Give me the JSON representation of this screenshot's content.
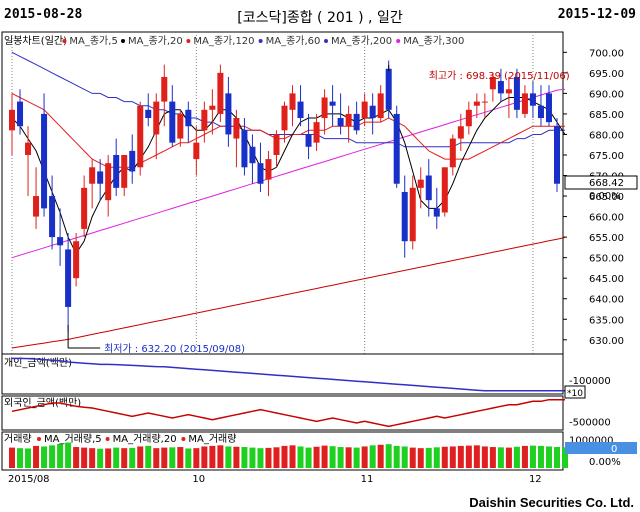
{
  "header": {
    "start_date": "2015-08-28",
    "end_date": "2015-12-09",
    "title": "[코스닥]종합 ( 201 ) , 일간"
  },
  "footer": {
    "brand": "Daishin Securities Co. Ltd."
  },
  "colors": {
    "up": "#e0201b",
    "down": "#1830c8",
    "ma5": "#000000",
    "ma20": "#e0201b",
    "ma60": "#3030c8",
    "ma120": "#c80000",
    "ma300": "#e020e0",
    "volume_up": "#e02020",
    "volume_down": "#20d020",
    "grid": "#808080",
    "accent_box": "#4a90e2"
  },
  "chart_data": [
    {
      "type": "candlestick",
      "title": "일봉차트(일간)",
      "legend": [
        "MA_종가,5",
        "MA_종가,20",
        "MA_종가,120",
        "MA_종가,60",
        "MA_종가,200",
        "MA_종가,300"
      ],
      "ylim": [
        628,
        703
      ],
      "yticks": [
        630,
        635,
        640,
        645,
        650,
        655,
        660,
        665,
        670,
        675,
        680,
        685,
        690,
        695,
        700
      ],
      "x_months": [
        {
          "index": 0,
          "label": "2015/08"
        },
        {
          "index": 23,
          "label": "10"
        },
        {
          "index": 44,
          "label": "11"
        },
        {
          "index": 65,
          "label": "12"
        }
      ],
      "annotations": {
        "high_label": "최고가 : 698.39 (2015/11/06)",
        "high_value": 698.39,
        "high_index": 47,
        "low_label": "최저가 : 632.20 (2015/09/08)",
        "low_value": 632.2,
        "low_index": 7
      },
      "last_value": "668.42",
      "last_value_num": 668.42,
      "last_change": "0.00%",
      "candles": [
        {
          "o": 681,
          "h": 690,
          "l": 675,
          "c": 686
        },
        {
          "o": 688,
          "h": 691,
          "l": 680,
          "c": 682
        },
        {
          "o": 675,
          "h": 682,
          "l": 665,
          "c": 678
        },
        {
          "o": 660,
          "h": 672,
          "l": 657,
          "c": 665
        },
        {
          "o": 685,
          "h": 690,
          "l": 660,
          "c": 662
        },
        {
          "o": 665,
          "h": 670,
          "l": 652,
          "c": 655
        },
        {
          "o": 655,
          "h": 662,
          "l": 648,
          "c": 653
        },
        {
          "o": 652,
          "h": 656,
          "l": 632,
          "c": 638
        },
        {
          "o": 645,
          "h": 656,
          "l": 643,
          "c": 654
        },
        {
          "o": 657,
          "h": 670,
          "l": 655,
          "c": 667
        },
        {
          "o": 668,
          "h": 674,
          "l": 662,
          "c": 672
        },
        {
          "o": 671,
          "h": 674,
          "l": 664,
          "c": 668
        },
        {
          "o": 664,
          "h": 675,
          "l": 660,
          "c": 673
        },
        {
          "o": 675,
          "h": 679,
          "l": 665,
          "c": 667
        },
        {
          "o": 667,
          "h": 675,
          "l": 665,
          "c": 675
        },
        {
          "o": 676,
          "h": 680,
          "l": 668,
          "c": 671
        },
        {
          "o": 672,
          "h": 688,
          "l": 670,
          "c": 687
        },
        {
          "o": 686,
          "h": 690,
          "l": 682,
          "c": 684
        },
        {
          "o": 680,
          "h": 690,
          "l": 674,
          "c": 688
        },
        {
          "o": 688,
          "h": 697,
          "l": 682,
          "c": 694
        },
        {
          "o": 688,
          "h": 692,
          "l": 677,
          "c": 678
        },
        {
          "o": 679,
          "h": 686,
          "l": 677,
          "c": 685
        },
        {
          "o": 686,
          "h": 688,
          "l": 678,
          "c": 682
        },
        {
          "o": 674,
          "h": 682,
          "l": 670,
          "c": 678
        },
        {
          "o": 681,
          "h": 688,
          "l": 678,
          "c": 686
        },
        {
          "o": 686,
          "h": 691,
          "l": 680,
          "c": 687
        },
        {
          "o": 685,
          "h": 697,
          "l": 683,
          "c": 695
        },
        {
          "o": 690,
          "h": 694,
          "l": 677,
          "c": 680
        },
        {
          "o": 679,
          "h": 686,
          "l": 672,
          "c": 684
        },
        {
          "o": 681,
          "h": 684,
          "l": 670,
          "c": 672
        },
        {
          "o": 677,
          "h": 680,
          "l": 668,
          "c": 673
        },
        {
          "o": 673,
          "h": 678,
          "l": 666,
          "c": 668
        },
        {
          "o": 669,
          "h": 676,
          "l": 665,
          "c": 674
        },
        {
          "o": 675,
          "h": 681,
          "l": 672,
          "c": 680
        },
        {
          "o": 681,
          "h": 688,
          "l": 678,
          "c": 687
        },
        {
          "o": 686,
          "h": 692,
          "l": 682,
          "c": 690
        },
        {
          "o": 688,
          "h": 692,
          "l": 682,
          "c": 684
        },
        {
          "o": 680,
          "h": 685,
          "l": 674,
          "c": 677
        },
        {
          "o": 678,
          "h": 685,
          "l": 676,
          "c": 683
        },
        {
          "o": 684,
          "h": 691,
          "l": 680,
          "c": 689
        },
        {
          "o": 688,
          "h": 692,
          "l": 682,
          "c": 687
        },
        {
          "o": 684,
          "h": 690,
          "l": 680,
          "c": 682
        },
        {
          "o": 682,
          "h": 687,
          "l": 678,
          "c": 685
        },
        {
          "o": 685,
          "h": 688,
          "l": 680,
          "c": 681
        },
        {
          "o": 684,
          "h": 690,
          "l": 682,
          "c": 688
        },
        {
          "o": 687,
          "h": 690,
          "l": 680,
          "c": 684
        },
        {
          "o": 684,
          "h": 692,
          "l": 683,
          "c": 690
        },
        {
          "o": 696,
          "h": 698,
          "l": 684,
          "c": 686
        },
        {
          "o": 685,
          "h": 687,
          "l": 667,
          "c": 668
        },
        {
          "o": 666,
          "h": 670,
          "l": 650,
          "c": 654
        },
        {
          "o": 654,
          "h": 670,
          "l": 652,
          "c": 667
        },
        {
          "o": 667,
          "h": 672,
          "l": 662,
          "c": 669
        },
        {
          "o": 670,
          "h": 674,
          "l": 660,
          "c": 664
        },
        {
          "o": 662,
          "h": 667,
          "l": 657,
          "c": 660
        },
        {
          "o": 661,
          "h": 672,
          "l": 660,
          "c": 672
        },
        {
          "o": 672,
          "h": 680,
          "l": 670,
          "c": 679
        },
        {
          "o": 679,
          "h": 685,
          "l": 676,
          "c": 682
        },
        {
          "o": 682,
          "h": 688,
          "l": 680,
          "c": 686
        },
        {
          "o": 687,
          "h": 690,
          "l": 684,
          "c": 688
        },
        {
          "o": 688,
          "h": 690,
          "l": 684,
          "c": 688
        },
        {
          "o": 691,
          "h": 695,
          "l": 688,
          "c": 694
        },
        {
          "o": 693,
          "h": 696,
          "l": 688,
          "c": 690
        },
        {
          "o": 690,
          "h": 694,
          "l": 684,
          "c": 691
        },
        {
          "o": 694,
          "h": 696,
          "l": 684,
          "c": 686
        },
        {
          "o": 685,
          "h": 692,
          "l": 684,
          "c": 690
        },
        {
          "o": 690,
          "h": 693,
          "l": 684,
          "c": 687
        },
        {
          "o": 687,
          "h": 692,
          "l": 682,
          "c": 684
        },
        {
          "o": 690,
          "h": 692,
          "l": 682,
          "c": 683
        },
        {
          "o": 682,
          "h": 684,
          "l": 666,
          "c": 668
        }
      ],
      "ma5": [
        684,
        682,
        679,
        676,
        671,
        666,
        661,
        655,
        651,
        654,
        660,
        664,
        667,
        670,
        672,
        671,
        674,
        677,
        681,
        685,
        686,
        686,
        683,
        681,
        681,
        683,
        686,
        686,
        684,
        680,
        676,
        672,
        671,
        672,
        676,
        680,
        683,
        684,
        684,
        685,
        685,
        685,
        684,
        683,
        684,
        684,
        685,
        686,
        683,
        678,
        671,
        664,
        662,
        662,
        664,
        668,
        673,
        677,
        681,
        684,
        686,
        688,
        689,
        689,
        689,
        688,
        687,
        686,
        683,
        680
      ],
      "ma20": [
        690,
        689,
        688,
        687,
        686,
        684,
        682,
        680,
        678,
        676,
        674,
        673,
        672,
        672,
        672,
        672,
        673,
        674,
        675,
        676,
        677,
        678,
        678,
        679,
        680,
        681,
        682,
        682,
        682,
        682,
        681,
        681,
        680,
        679,
        679,
        680,
        680,
        681,
        681,
        681,
        682,
        682,
        682,
        682,
        683,
        683,
        683,
        684,
        683,
        682,
        680,
        678,
        676,
        675,
        674,
        674,
        674,
        674,
        675,
        676,
        677,
        678,
        679,
        680,
        681,
        682,
        682,
        682,
        682,
        682
      ],
      "ma60": [
        700,
        699,
        698,
        697,
        696,
        695,
        694,
        693,
        692,
        691,
        690,
        690,
        689,
        689,
        688,
        688,
        687,
        687,
        686,
        686,
        685,
        685,
        684,
        684,
        683,
        683,
        682,
        682,
        682,
        681,
        681,
        681,
        680,
        680,
        680,
        680,
        680,
        680,
        680,
        679,
        679,
        679,
        679,
        678,
        678,
        678,
        678,
        678,
        678,
        677,
        677,
        677,
        677,
        677,
        677,
        677,
        678,
        678,
        678,
        678,
        678,
        678,
        678,
        679,
        679,
        680,
        680,
        681,
        681,
        681
      ],
      "ma120": [
        628,
        628.3,
        628.6,
        628.9,
        629.2,
        629.5,
        629.8,
        630.1,
        630.5,
        630.9,
        631.3,
        631.7,
        632.1,
        632.5,
        632.9,
        633.3,
        633.7,
        634.1,
        634.5,
        634.9,
        635.3,
        635.7,
        636.1,
        636.5,
        636.9,
        637.3,
        637.7,
        638.1,
        638.5,
        638.9,
        639.3,
        639.7,
        640.1,
        640.5,
        640.9,
        641.3,
        641.7,
        642.1,
        642.5,
        642.9,
        643.3,
        643.7,
        644.1,
        644.5,
        644.9,
        645.3,
        645.7,
        646.1,
        646.5,
        646.9,
        647.3,
        647.7,
        648.1,
        648.5,
        648.9,
        649.3,
        649.7,
        650.1,
        650.5,
        650.9,
        651.3,
        651.7,
        652.1,
        652.5,
        652.9,
        653.3,
        653.7,
        654.1,
        654.5,
        654.9
      ],
      "ma300": [
        650,
        650.6,
        651.2,
        651.8,
        652.4,
        653,
        653.6,
        654.2,
        654.8,
        655.4,
        656,
        656.6,
        657.2,
        657.8,
        658.4,
        659,
        659.6,
        660.2,
        660.8,
        661.4,
        662,
        662.6,
        663.2,
        663.8,
        664.4,
        665,
        665.6,
        666.2,
        666.8,
        667.4,
        668,
        668.6,
        669.2,
        669.8,
        670.4,
        671,
        671.6,
        672.2,
        672.8,
        673.4,
        674,
        674.6,
        675.2,
        675.8,
        676.4,
        677,
        677.6,
        678.2,
        678.8,
        679.4,
        680,
        680.6,
        681.2,
        681.8,
        682.4,
        683,
        683.6,
        684.2,
        684.8,
        685.4,
        686,
        686.6,
        687.2,
        687.8,
        688.4,
        689,
        689.6,
        690.2,
        690.8,
        691
      ]
    },
    {
      "type": "line",
      "title": "개인_금액(백만)",
      "ylim": [
        -200000,
        100000
      ],
      "yticks_labels": [
        "-100000"
      ],
      "yticks_values": [
        -100000
      ],
      "scale_note": "*10",
      "values": [
        80000,
        80000,
        78000,
        75000,
        70000,
        65000,
        60000,
        50000,
        45000,
        40000,
        35000,
        30000,
        30000,
        28000,
        25000,
        22000,
        18000,
        15000,
        12000,
        10000,
        5000,
        0,
        -5000,
        -10000,
        -15000,
        -20000,
        -25000,
        -30000,
        -35000,
        -40000,
        -45000,
        -50000,
        -55000,
        -60000,
        -65000,
        -70000,
        -75000,
        -80000,
        -85000,
        -90000,
        -95000,
        -100000,
        -105000,
        -110000,
        -115000,
        -120000,
        -125000,
        -130000,
        -135000,
        -140000,
        -145000,
        -150000,
        -155000,
        -160000,
        -165000,
        -170000,
        -175000,
        -180000,
        -185000,
        -190000,
        -190000,
        -190000,
        -190000,
        -190000,
        -190000,
        -190000,
        -190000,
        -190000,
        -190000,
        -190000
      ]
    },
    {
      "type": "line",
      "title": "외국인_금액(백만)",
      "ylim": [
        -700000,
        200000
      ],
      "yticks_labels": [
        "-500000"
      ],
      "yticks_values": [
        -500000
      ],
      "values": [
        -200000,
        -150000,
        -100000,
        -50000,
        0,
        50000,
        50000,
        0,
        -50000,
        -80000,
        -100000,
        -150000,
        -200000,
        -250000,
        -300000,
        -350000,
        -300000,
        -250000,
        -300000,
        -350000,
        -400000,
        -350000,
        -300000,
        -350000,
        -400000,
        -450000,
        -400000,
        -350000,
        -300000,
        -250000,
        -200000,
        -150000,
        -200000,
        -250000,
        -300000,
        -350000,
        -400000,
        -450000,
        -500000,
        -450000,
        -400000,
        -450000,
        -500000,
        -550000,
        -500000,
        -550000,
        -600000,
        -650000,
        -600000,
        -550000,
        -500000,
        -450000,
        -400000,
        -350000,
        -400000,
        -350000,
        -300000,
        -250000,
        -200000,
        -150000,
        -100000,
        -50000,
        0,
        0,
        50000,
        100000,
        100000,
        150000,
        150000,
        150000
      ]
    },
    {
      "type": "bar",
      "title": "거래량",
      "legend": [
        "MA_거래량,5",
        "MA_거래량,20",
        "MA_거래량"
      ],
      "ylim": [
        0,
        1200000
      ],
      "yticks_labels": [
        "1000000"
      ],
      "yticks_values": [
        1000000
      ],
      "last_value": "0",
      "last_change": "0.00%",
      "values": [
        720000,
        700000,
        690000,
        780000,
        760000,
        800000,
        850000,
        900000,
        740000,
        720000,
        700000,
        680000,
        690000,
        720000,
        700000,
        710000,
        760000,
        780000,
        700000,
        720000,
        730000,
        740000,
        690000,
        700000,
        760000,
        780000,
        800000,
        760000,
        750000,
        740000,
        720000,
        700000,
        710000,
        730000,
        780000,
        800000,
        760000,
        720000,
        750000,
        790000,
        770000,
        740000,
        730000,
        720000,
        760000,
        800000,
        820000,
        840000,
        780000,
        760000,
        720000,
        700000,
        710000,
        730000,
        750000,
        760000,
        780000,
        790000,
        800000,
        760000,
        740000,
        730000,
        720000,
        750000,
        780000,
        790000,
        780000,
        760000,
        740000,
        730000
      ],
      "up": [
        1,
        0,
        0,
        1,
        0,
        0,
        0,
        0,
        1,
        1,
        1,
        0,
        1,
        0,
        1,
        0,
        1,
        0,
        1,
        1,
        0,
        1,
        0,
        1,
        1,
        1,
        1,
        0,
        1,
        0,
        0,
        0,
        1,
        1,
        1,
        1,
        0,
        0,
        1,
        1,
        0,
        0,
        1,
        0,
        1,
        0,
        1,
        0,
        0,
        0,
        1,
        1,
        0,
        0,
        1,
        1,
        1,
        1,
        1,
        1,
        1,
        0,
        1,
        0,
        1,
        0,
        0,
        0,
        0,
        0
      ]
    }
  ]
}
